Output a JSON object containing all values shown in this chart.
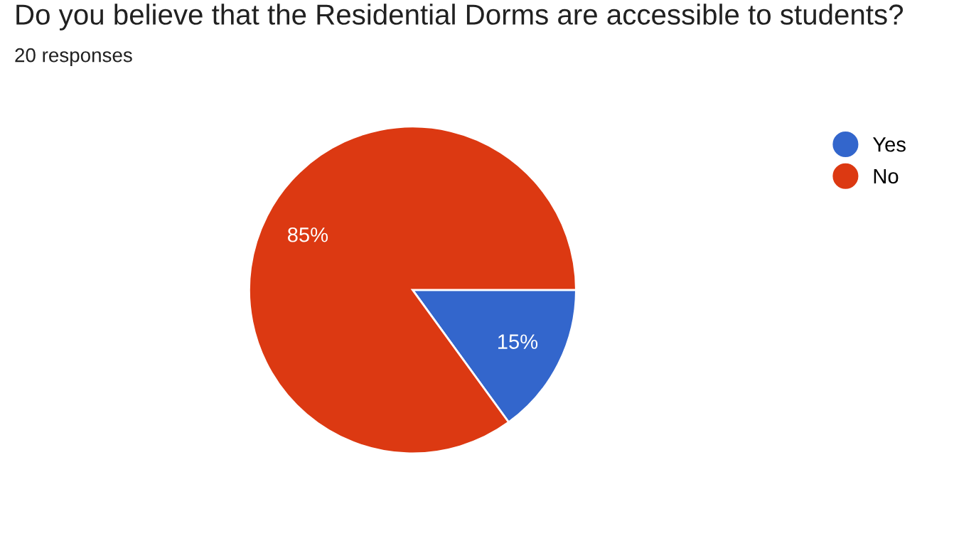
{
  "chart_data": {
    "type": "pie",
    "title": "Do you believe that the Residential Dorms are accessible to students?",
    "subtitle": "20 responses",
    "categories": [
      "Yes",
      "No"
    ],
    "values": [
      15,
      85
    ],
    "colors": [
      "#3366cc",
      "#dc3912"
    ],
    "value_labels": [
      "15%",
      "85%"
    ],
    "legend": "top right"
  }
}
